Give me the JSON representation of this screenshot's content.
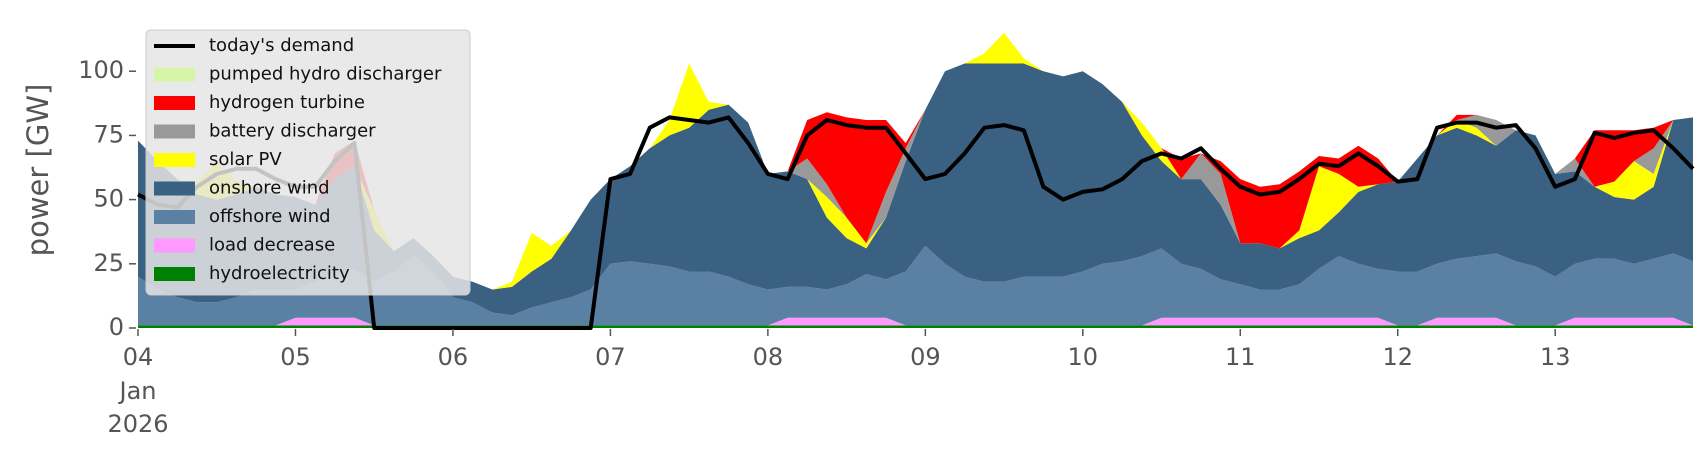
{
  "chart_data": {
    "type": "area",
    "ylabel": "power [GW]",
    "xtick_month": "Jan",
    "xtick_year": "2026",
    "ylim": [
      0,
      118
    ],
    "yticks": [
      0,
      25,
      50,
      75,
      100
    ],
    "xlim": [
      4,
      13.875
    ],
    "xticks": [
      {
        "value": 4,
        "label": "04"
      },
      {
        "value": 5,
        "label": "05"
      },
      {
        "value": 6,
        "label": "06"
      },
      {
        "value": 7,
        "label": "07"
      },
      {
        "value": 8,
        "label": "08"
      },
      {
        "value": 9,
        "label": "09"
      },
      {
        "value": 10,
        "label": "10"
      },
      {
        "value": 11,
        "label": "11"
      },
      {
        "value": 12,
        "label": "12"
      },
      {
        "value": 13,
        "label": "13"
      }
    ],
    "legend": "upper left",
    "x": [
      4,
      4.125,
      4.25,
      4.375,
      4.5,
      4.625,
      4.75,
      4.875,
      5,
      5.125,
      5.25,
      5.375,
      5.5,
      5.625,
      5.75,
      5.875,
      6,
      6.125,
      6.25,
      6.375,
      6.5,
      6.625,
      6.75,
      6.875,
      7,
      7.125,
      7.25,
      7.375,
      7.5,
      7.625,
      7.75,
      7.875,
      8,
      8.125,
      8.25,
      8.375,
      8.5,
      8.625,
      8.75,
      8.875,
      9,
      9.125,
      9.25,
      9.375,
      9.5,
      9.625,
      9.75,
      9.875,
      10,
      10.125,
      10.25,
      10.375,
      10.5,
      10.625,
      10.75,
      10.875,
      11,
      11.125,
      11.25,
      11.375,
      11.5,
      11.625,
      11.75,
      11.875,
      12,
      12.125,
      12.25,
      12.375,
      12.5,
      12.625,
      12.75,
      12.875,
      13,
      13.125,
      13.25,
      13.375,
      13.5,
      13.625,
      13.75,
      13.875
    ],
    "series": [
      {
        "name": "today's demand",
        "style": "line",
        "color": "#000000",
        "values": [
          52,
          48,
          47,
          55,
          60,
          62,
          62,
          58,
          55,
          55,
          65,
          72,
          0,
          0,
          0,
          0,
          0,
          0,
          0,
          0,
          0,
          0,
          0,
          0,
          58,
          60,
          78,
          82,
          81,
          80,
          82,
          72,
          60,
          58,
          75,
          81,
          79,
          78,
          78,
          68,
          58,
          60,
          68,
          78,
          79,
          77,
          55,
          50,
          53,
          54,
          58,
          65,
          68,
          66,
          70,
          62,
          55,
          52,
          53,
          58,
          64,
          63,
          68,
          63,
          57,
          58,
          78,
          80,
          80,
          78,
          79,
          70,
          55,
          58,
          76,
          74,
          76,
          77,
          70,
          62
        ]
      },
      {
        "name": "pumped hydro discharger",
        "color": "#d6f5a8",
        "values": [
          0,
          0,
          0,
          0,
          0,
          0,
          0,
          0,
          0,
          0,
          0,
          0,
          0,
          0,
          0,
          0,
          0,
          0,
          0,
          0,
          0,
          0,
          0,
          0,
          0,
          0,
          0,
          0,
          0,
          0,
          0,
          0,
          0,
          0,
          0,
          0,
          0,
          0,
          0,
          0,
          0,
          0,
          0,
          0,
          0,
          0,
          0,
          0,
          0,
          0,
          0,
          0,
          0,
          0,
          0,
          0,
          0,
          0,
          0,
          0,
          0,
          0,
          0,
          0,
          0,
          0,
          0,
          0,
          0,
          0,
          0,
          0,
          0,
          0,
          0,
          0,
          0,
          0,
          0,
          0
        ]
      },
      {
        "name": "hydrogen turbine",
        "color": "#ff0000",
        "values": [
          0,
          0,
          0,
          0,
          0,
          0,
          0,
          0,
          0,
          0,
          10,
          10,
          0,
          0,
          0,
          0,
          0,
          0,
          0,
          0,
          0,
          0,
          0,
          0,
          0,
          0,
          0,
          0,
          0,
          0,
          0,
          0,
          0,
          0,
          15,
          28,
          39,
          48,
          28,
          2,
          0,
          0,
          0,
          0,
          0,
          0,
          0,
          0,
          0,
          0,
          0,
          0,
          0,
          8,
          0,
          5,
          25,
          22,
          25,
          23,
          4,
          6,
          16,
          10,
          0,
          0,
          0,
          2,
          0,
          0,
          0,
          0,
          0,
          0,
          22,
          20,
          12,
          8,
          0,
          0
        ]
      },
      {
        "name": "battery discharger",
        "color": "#999999",
        "values": [
          0,
          0,
          0,
          0,
          0,
          0,
          0,
          0,
          0,
          0,
          0,
          0,
          0,
          0,
          0,
          0,
          0,
          0,
          0,
          0,
          0,
          0,
          0,
          0,
          0,
          0,
          0,
          0,
          0,
          0,
          0,
          0,
          0,
          0,
          8,
          5,
          0,
          0,
          10,
          5,
          0,
          0,
          0,
          0,
          0,
          0,
          0,
          0,
          0,
          0,
          0,
          0,
          0,
          0,
          10,
          12,
          0,
          0,
          0,
          0,
          0,
          0,
          0,
          0,
          0,
          0,
          0,
          0,
          5,
          10,
          0,
          0,
          0,
          5,
          0,
          0,
          0,
          10,
          0,
          0
        ]
      },
      {
        "name": "solar PV",
        "color": "#ffff00",
        "values": [
          0,
          0,
          0,
          5,
          15,
          5,
          0,
          0,
          0,
          0,
          0,
          0,
          8,
          0,
          0,
          0,
          0,
          0,
          0,
          2,
          15,
          5,
          0,
          0,
          0,
          0,
          0,
          6,
          25,
          3,
          0,
          0,
          0,
          0,
          0,
          8,
          8,
          2,
          0,
          0,
          0,
          0,
          0,
          4,
          12,
          2,
          0,
          0,
          0,
          0,
          0,
          5,
          5,
          0,
          0,
          0,
          0,
          0,
          0,
          3,
          25,
          15,
          2,
          0,
          0,
          0,
          0,
          3,
          3,
          0,
          0,
          0,
          0,
          0,
          0,
          6,
          15,
          5,
          0,
          0
        ]
      },
      {
        "name": "onshore wind",
        "color": "#3a6082",
        "values": [
          53,
          50,
          46,
          42,
          40,
          40,
          40,
          37,
          36,
          30,
          37,
          40,
          20,
          8,
          7,
          6,
          8,
          8,
          9,
          11,
          14,
          17,
          26,
          35,
          33,
          37,
          45,
          51,
          56,
          63,
          67,
          63,
          45,
          45,
          42,
          28,
          18,
          10,
          24,
          43,
          53,
          75,
          83,
          85,
          85,
          83,
          80,
          78,
          78,
          70,
          62,
          47,
          34,
          33,
          35,
          29,
          16,
          18,
          16,
          18,
          15,
          17,
          28,
          33,
          35,
          44,
          50,
          51,
          47,
          42,
          51,
          51,
          40,
          36,
          28,
          24,
          25,
          28,
          52,
          56
        ]
      },
      {
        "name": "offshore wind",
        "color": "#5a80a4",
        "values": [
          19,
          14,
          11,
          9,
          9,
          11,
          14,
          14,
          11,
          14,
          17,
          19,
          17,
          21,
          27,
          21,
          11,
          9,
          5,
          4,
          7,
          9,
          11,
          14,
          24,
          25,
          24,
          23,
          21,
          21,
          19,
          16,
          14,
          12,
          12,
          11,
          13,
          17,
          15,
          21,
          31,
          24,
          19,
          17,
          17,
          19,
          19,
          19,
          21,
          24,
          25,
          27,
          27,
          21,
          19,
          15,
          13,
          11,
          11,
          13,
          19,
          24,
          21,
          19,
          21,
          21,
          21,
          23,
          24,
          25,
          25,
          23,
          19,
          21,
          23,
          23,
          21,
          23,
          25,
          25
        ]
      },
      {
        "name": "load decrease",
        "color": "#ff99ff",
        "values": [
          0,
          0,
          0,
          0,
          0,
          0,
          0,
          0,
          3,
          3,
          3,
          3,
          0,
          0,
          0,
          0,
          0,
          0,
          0,
          0,
          0,
          0,
          0,
          0,
          0,
          0,
          0,
          0,
          0,
          0,
          0,
          0,
          0,
          3,
          3,
          3,
          3,
          3,
          3,
          0,
          0,
          0,
          0,
          0,
          0,
          0,
          0,
          0,
          0,
          0,
          0,
          0,
          3,
          3,
          3,
          3,
          3,
          3,
          3,
          3,
          3,
          3,
          3,
          3,
          0,
          0,
          3,
          3,
          3,
          3,
          0,
          0,
          0,
          3,
          3,
          3,
          3,
          3,
          3,
          0
        ]
      },
      {
        "name": "hydroelectricity",
        "color": "#008000",
        "values": [
          1,
          1,
          1,
          1,
          1,
          1,
          1,
          1,
          1,
          1,
          1,
          1,
          1,
          1,
          1,
          1,
          1,
          1,
          1,
          1,
          1,
          1,
          1,
          1,
          1,
          1,
          1,
          1,
          1,
          1,
          1,
          1,
          1,
          1,
          1,
          1,
          1,
          1,
          1,
          1,
          1,
          1,
          1,
          1,
          1,
          1,
          1,
          1,
          1,
          1,
          1,
          1,
          1,
          1,
          1,
          1,
          1,
          1,
          1,
          1,
          1,
          1,
          1,
          1,
          1,
          1,
          1,
          1,
          1,
          1,
          1,
          1,
          1,
          1,
          1,
          1,
          1,
          1,
          1,
          1
        ]
      }
    ]
  }
}
